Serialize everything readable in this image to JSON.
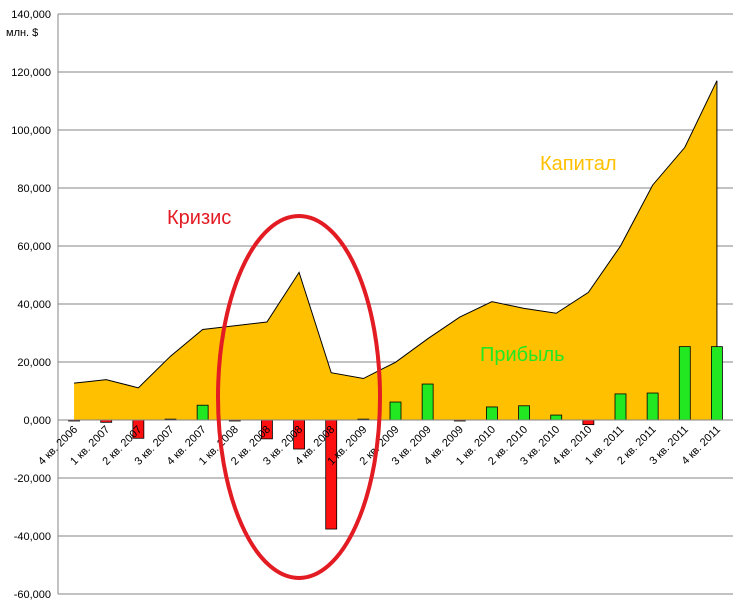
{
  "chart_data": {
    "type": "area",
    "unit_label": "млн. $",
    "categories": [
      "4 кв. 2006",
      "1 кв. 2007",
      "2 кв. 2007",
      "3 кв. 2007",
      "4 кв. 2007",
      "1 кв. 2008",
      "2 кв. 2008",
      "3 кв. 2008",
      "4 кв. 2008",
      "1 кв. 2009",
      "2 кв. 2009",
      "3 кв. 2009",
      "4 кв. 2009",
      "1 кв. 2010",
      "2 кв. 2010",
      "3 кв. 2010",
      "4 кв. 2010",
      "1 кв. 2011",
      "2 кв. 2011",
      "3 кв. 2011",
      "4 кв. 2011"
    ],
    "ylim": [
      -60000,
      140000
    ],
    "yticks": [
      140000,
      120000,
      100000,
      80000,
      60000,
      40000,
      20000,
      0,
      -20000,
      -40000,
      -60000
    ],
    "ytick_labels": [
      "140,000",
      "120,000",
      "100,000",
      "80,000",
      "60,000",
      "40,000",
      "20,000",
      "0,000",
      "-20,000",
      "-40,000",
      "-60,000"
    ],
    "grid": true,
    "series": [
      {
        "name": "Капитал",
        "type": "area",
        "color": "#FFC000",
        "values": [
          12700,
          13900,
          11100,
          22000,
          31200,
          32500,
          33800,
          50900,
          16300,
          14300,
          19900,
          28000,
          35500,
          40800,
          38500,
          36800,
          44000,
          60000,
          81000,
          94000,
          117000
        ]
      },
      {
        "name": "Прибыль",
        "type": "bar",
        "positive_color": "#22E822",
        "negative_color": "#FF1010",
        "values": [
          -200,
          -800,
          -6300,
          300,
          5100,
          -300,
          -6500,
          -10000,
          -37600,
          300,
          6200,
          12400,
          -200,
          4500,
          4900,
          1700,
          -1600,
          9000,
          9300,
          25300,
          25300
        ]
      }
    ],
    "annotations": [
      {
        "text": "Кризис",
        "color": "#E31B23"
      },
      {
        "text": "Капитал",
        "color": "#FFC000"
      },
      {
        "text": "Прибыль",
        "color": "#22E822"
      }
    ],
    "crisis_color": "#E31B23"
  }
}
